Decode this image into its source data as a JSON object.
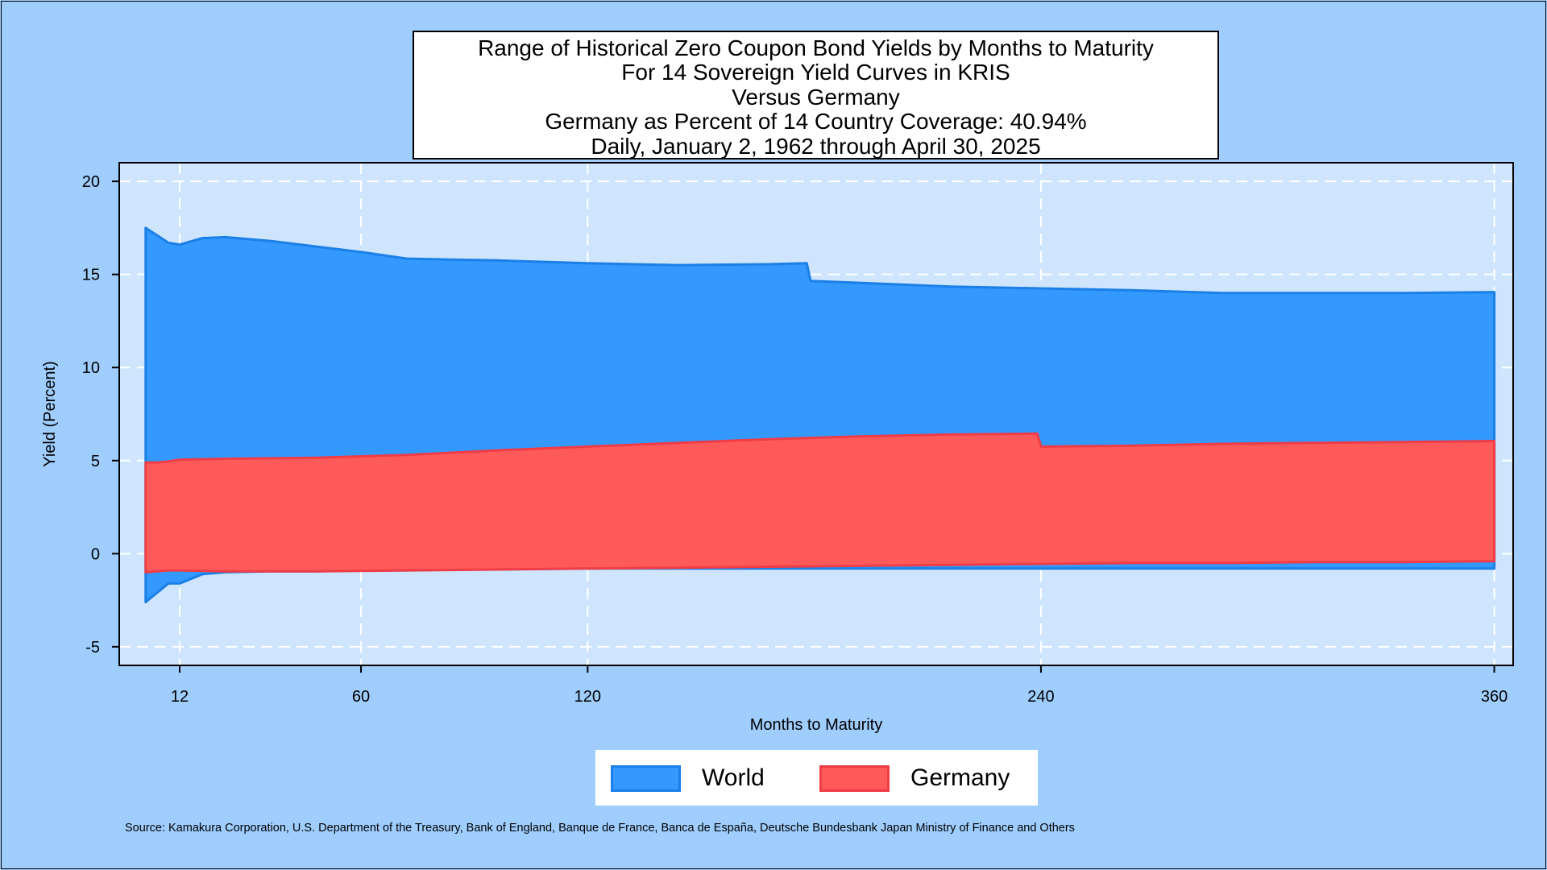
{
  "title_lines": [
    "Range of Historical Zero Coupon Bond Yields by Months to Maturity",
    "For 14 Sovereign Yield Curves in KRIS",
    "Versus Germany",
    "Germany as Percent of 14 Country Coverage: 40.94%",
    "Daily, January 2, 1962 through April 30, 2025"
  ],
  "source": "Source: Kamakura Corporation, U.S. Department of the Treasury, Bank of England, Banque de France, Banca de España, Deutsche Bundesbank Japan Ministry of Finance and Others",
  "chart_data": {
    "type": "area",
    "xlabel": "Months to Maturity",
    "ylabel": "Yield (Percent)",
    "xlim": [
      -4,
      365
    ],
    "ylim": [
      -6,
      21
    ],
    "xticks": [
      12,
      60,
      120,
      240,
      360
    ],
    "yticks": [
      -5,
      0,
      5,
      10,
      15,
      20
    ],
    "grid": true,
    "legend_position": "bottom",
    "series": [
      {
        "name": "World",
        "color": "#3399ff",
        "edge_color": "#1a7fe8",
        "x": [
          3,
          6,
          9,
          12,
          18,
          24,
          36,
          48,
          60,
          72,
          84,
          96,
          120,
          144,
          168,
          178,
          179,
          192,
          216,
          240,
          264,
          288,
          312,
          336,
          360
        ],
        "upper": [
          17.5,
          17.1,
          16.7,
          16.6,
          16.95,
          17.0,
          16.8,
          16.5,
          16.2,
          15.85,
          15.8,
          15.75,
          15.6,
          15.5,
          15.55,
          15.6,
          14.65,
          14.55,
          14.35,
          14.25,
          14.15,
          14.0,
          14.0,
          14.0,
          14.05
        ],
        "lower": [
          -2.6,
          -2.1,
          -1.6,
          -1.6,
          -1.1,
          -1.0,
          -0.95,
          -0.95,
          -0.9,
          -0.9,
          -0.85,
          -0.85,
          -0.8,
          -0.8,
          -0.8,
          -0.8,
          -0.8,
          -0.8,
          -0.8,
          -0.8,
          -0.8,
          -0.8,
          -0.8,
          -0.8,
          -0.8
        ]
      },
      {
        "name": "Germany",
        "color": "#ff5a5a",
        "edge_color": "#f03c46",
        "x": [
          3,
          6,
          9,
          12,
          24,
          48,
          72,
          96,
          120,
          144,
          168,
          192,
          216,
          239,
          240,
          264,
          288,
          312,
          336,
          360
        ],
        "upper": [
          4.9,
          4.9,
          4.95,
          5.05,
          5.1,
          5.15,
          5.3,
          5.55,
          5.75,
          5.95,
          6.15,
          6.3,
          6.4,
          6.45,
          5.75,
          5.8,
          5.9,
          5.95,
          6.0,
          6.05
        ],
        "lower": [
          -1.0,
          -0.95,
          -0.9,
          -0.9,
          -0.95,
          -0.95,
          -0.9,
          -0.85,
          -0.8,
          -0.75,
          -0.7,
          -0.65,
          -0.6,
          -0.55,
          -0.55,
          -0.5,
          -0.5,
          -0.45,
          -0.45,
          -0.4
        ]
      }
    ]
  }
}
